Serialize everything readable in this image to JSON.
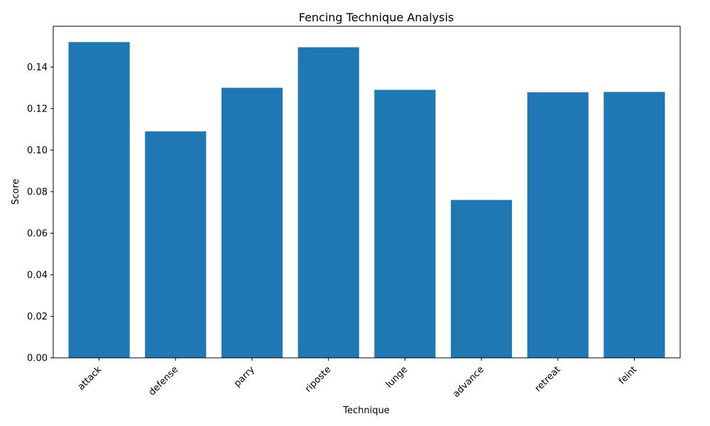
{
  "chart_data": {
    "type": "bar",
    "title": "Fencing Technique Analysis",
    "xlabel": "Technique",
    "ylabel": "Score",
    "categories": [
      "attack",
      "defense",
      "parry",
      "riposte",
      "lunge",
      "advance",
      "retreat",
      "feint"
    ],
    "values": [
      0.152,
      0.109,
      0.13,
      0.1495,
      0.129,
      0.076,
      0.1278,
      0.128
    ],
    "ylim": [
      0,
      0.1596
    ],
    "yticks": [
      "0.00",
      "0.02",
      "0.04",
      "0.06",
      "0.08",
      "0.10",
      "0.12",
      "0.14"
    ],
    "bar_color": "#1f77b4",
    "grid": false,
    "xtick_rotation": "45deg"
  }
}
